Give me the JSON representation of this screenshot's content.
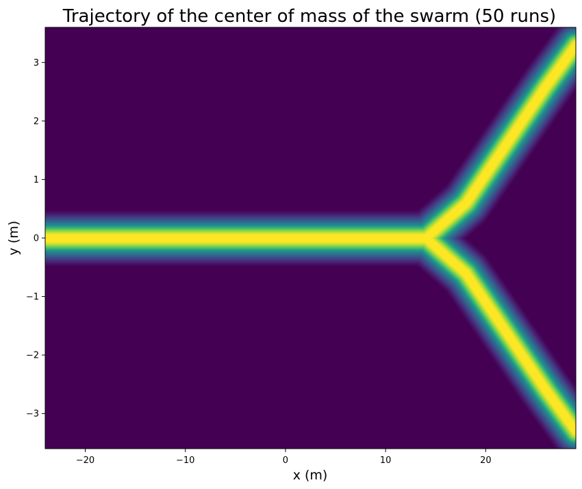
{
  "chart_data": {
    "type": "heatmap",
    "title": "Trajectory of the center of mass of the swarm (50 runs)",
    "xlabel": "x (m)",
    "ylabel": "y (m)",
    "xlim": [
      -24,
      29
    ],
    "ylim": [
      -3.6,
      3.6
    ],
    "x_ticks": [
      -20,
      -10,
      0,
      10,
      20
    ],
    "x_tick_labels": [
      "−20",
      "−10",
      "0",
      "10",
      "20"
    ],
    "y_ticks": [
      -3,
      -2,
      -1,
      0,
      1,
      2,
      3
    ],
    "y_tick_labels": [
      "−3",
      "−2",
      "−1",
      "0",
      "1",
      "2",
      "3"
    ],
    "colormap": "viridis",
    "grid": false,
    "density_ridges": [
      {
        "name": "straight",
        "points": [
          [
            -24,
            0.0
          ],
          [
            -20,
            0.0
          ],
          [
            -10,
            0.0
          ],
          [
            0,
            0.0
          ],
          [
            10,
            0.0
          ],
          [
            14,
            0.0
          ]
        ],
        "half_width_m": 0.42
      },
      {
        "name": "upper branch",
        "points": [
          [
            14,
            0.0
          ],
          [
            18,
            0.6
          ],
          [
            22,
            1.6
          ],
          [
            26,
            2.6
          ],
          [
            29,
            3.3
          ]
        ],
        "half_width_m": 0.4
      },
      {
        "name": "lower branch",
        "points": [
          [
            14,
            0.0
          ],
          [
            18,
            -0.6
          ],
          [
            22,
            -1.6
          ],
          [
            26,
            -2.6
          ],
          [
            29,
            -3.3
          ]
        ],
        "half_width_m": 0.4
      }
    ]
  }
}
